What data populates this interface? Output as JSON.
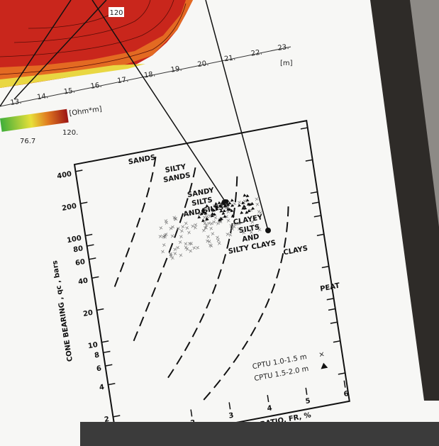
{
  "map": {
    "contour_label": "120",
    "x_ticks": [
      "13.",
      "14.",
      "15.",
      "16.",
      "17.",
      "18.",
      "19.",
      "20.",
      "21.",
      "22.",
      "23."
    ],
    "x_unit": "[m]",
    "colorbar": {
      "unit": "[Ohm*m]",
      "labels": [
        "76.7",
        "120."
      ]
    }
  },
  "chart": {
    "y_ticks": [
      "400",
      "200",
      "100",
      "80",
      "60",
      "40",
      "20",
      "10",
      "8",
      "6",
      "4",
      "2"
    ],
    "x_ticks": [
      "2",
      "3",
      "4",
      "5",
      "6"
    ],
    "y_label": "CONE BEARING , qc , bars",
    "x_label": "RATIO, FR, %",
    "zones": [
      [
        "SANDS"
      ],
      [
        "SILTY",
        "SANDS"
      ],
      [
        "SANDY",
        "SILTS",
        "AND SILTS"
      ],
      [
        "CLAYEY",
        "SILTS",
        "AND",
        "SILTY CLAYS"
      ],
      [
        "CLAYS"
      ],
      [
        "PEAT"
      ]
    ],
    "legend": [
      "CPTU 1.0-1.5 m",
      "CPTU 1.5-2.0 m"
    ]
  }
}
